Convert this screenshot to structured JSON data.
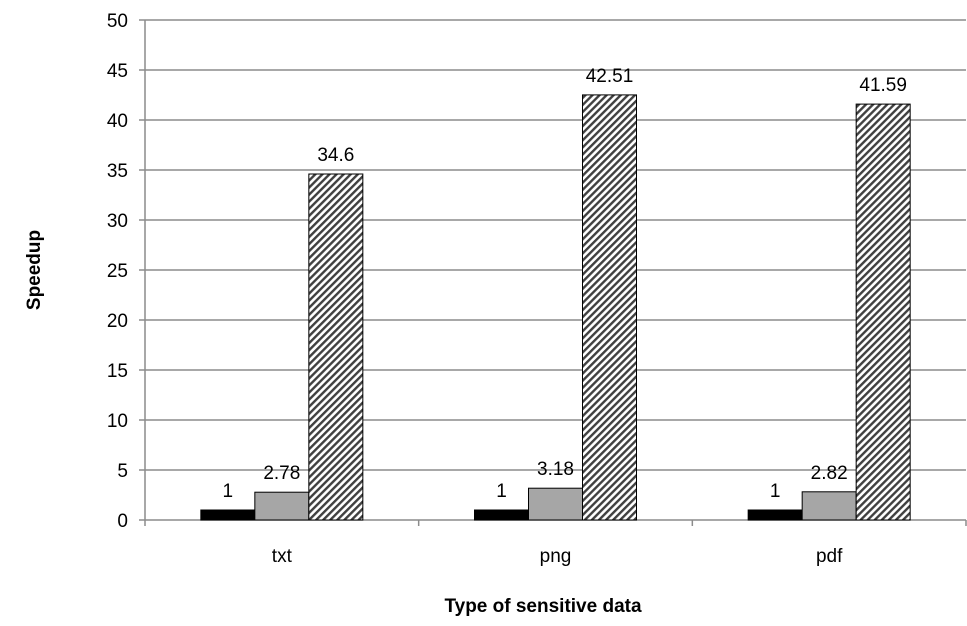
{
  "chart_data": {
    "type": "bar",
    "title": "",
    "xlabel": "Type of sensitive data",
    "ylabel": "Speedup",
    "categories": [
      "txt",
      "png",
      "pdf"
    ],
    "series": [
      {
        "values": [
          1,
          1,
          1
        ],
        "color": "#000000",
        "fill": "solid"
      },
      {
        "values": [
          2.78,
          3.18,
          2.82
        ],
        "color": "#a6a6a6",
        "fill": "solid"
      },
      {
        "values": [
          34.6,
          42.51,
          41.59
        ],
        "color": "#404040",
        "fill": "diagonal-hatch"
      }
    ],
    "data_labels": [
      [
        "1",
        "1",
        "1"
      ],
      [
        "2.78",
        "3.18",
        "2.82"
      ],
      [
        "34.6",
        "42.51",
        "41.59"
      ]
    ],
    "ylim": [
      0,
      50
    ],
    "yticks": [
      0,
      5,
      10,
      15,
      20,
      25,
      30,
      35,
      40,
      45,
      50
    ],
    "grid": true,
    "legend": "none"
  }
}
